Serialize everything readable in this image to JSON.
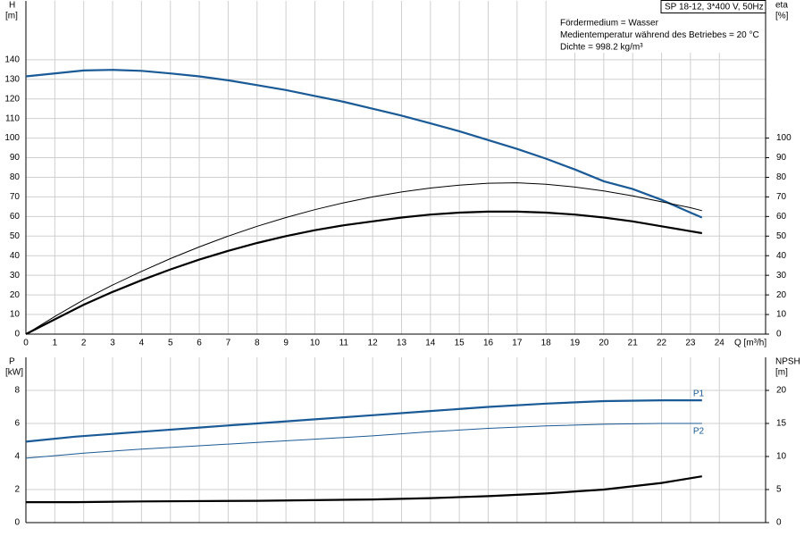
{
  "chart_data": [
    {
      "type": "line",
      "title": "SP 18-12, 3*400 V, 50Hz",
      "annotations": [
        "Fördermedium = Wasser",
        "Medientemperatur während des Betriebes = 20 °C",
        "Dichte = 998.2 kg/m³"
      ],
      "xlabel": "Q [m³/h]",
      "ylabel": "H",
      "yunit": "[m]",
      "y2label": "eta",
      "y2unit": "[%]",
      "xlim": [
        0,
        25.6
      ],
      "ylim": [
        0,
        170
      ],
      "y2lim": [
        0,
        170
      ],
      "xticks": [
        0,
        1,
        2,
        3,
        4,
        5,
        6,
        7,
        8,
        9,
        10,
        11,
        12,
        13,
        14,
        15,
        16,
        17,
        18,
        19,
        20,
        21,
        22,
        23,
        24
      ],
      "yticks": [
        0,
        10,
        20,
        30,
        40,
        50,
        60,
        70,
        80,
        90,
        100,
        110,
        120,
        130,
        140
      ],
      "y2ticks": [
        0,
        10,
        20,
        30,
        40,
        50,
        60,
        70,
        80,
        90,
        100
      ],
      "show_xtick_labels": true,
      "grid": true,
      "series": [
        {
          "color": "#1a5a96",
          "line": "thick",
          "axis": "y",
          "x": [
            0,
            2,
            3,
            4,
            5,
            6,
            7,
            8,
            9,
            10,
            11,
            12,
            13,
            14,
            15,
            16,
            17,
            18,
            19,
            20,
            21,
            22,
            23,
            23.4
          ],
          "values": [
            131.5,
            134.5,
            134.8,
            134.3,
            133,
            131.5,
            129.5,
            127,
            124.5,
            121.5,
            118.5,
            115,
            111.5,
            107.5,
            103.5,
            99,
            94.5,
            89.5,
            84,
            78,
            74,
            68.5,
            62,
            59.5
          ]
        },
        {
          "color": "#000000",
          "line": "thin",
          "axis": "y2",
          "x": [
            0,
            1,
            2,
            3,
            4,
            5,
            6,
            7,
            8,
            9,
            10,
            11,
            12,
            13,
            14,
            15,
            16,
            17,
            18,
            19,
            20,
            21,
            22,
            23,
            23.4
          ],
          "values": [
            0,
            9,
            17.5,
            25,
            32,
            38.5,
            44.5,
            50,
            55,
            59.5,
            63.5,
            67,
            70,
            72.5,
            74.5,
            76,
            77,
            77.2,
            76.5,
            75,
            73,
            70.5,
            67.5,
            64.5,
            63
          ]
        },
        {
          "color": "#000000",
          "line": "thick",
          "axis": "y2",
          "x": [
            0,
            1,
            2,
            3,
            4,
            5,
            6,
            7,
            8,
            9,
            10,
            11,
            12,
            13,
            14,
            15,
            16,
            17,
            18,
            19,
            20,
            21,
            22,
            23,
            23.4
          ],
          "values": [
            0,
            7.5,
            15,
            21.5,
            27.5,
            33,
            38,
            42.5,
            46.5,
            50,
            53,
            55.5,
            57.5,
            59.5,
            61,
            62,
            62.5,
            62.5,
            62,
            61,
            59.5,
            57.5,
            55,
            52.5,
            51.5
          ]
        }
      ]
    },
    {
      "type": "line",
      "ylabel": "P",
      "yunit": "[kW]",
      "y2label": "NPSH",
      "y2unit": "[m]",
      "xlim": [
        0,
        25.6
      ],
      "ylim": [
        0,
        10
      ],
      "y2lim": [
        0,
        25
      ],
      "xticks": [
        0,
        1,
        2,
        3,
        4,
        5,
        6,
        7,
        8,
        9,
        10,
        11,
        12,
        13,
        14,
        15,
        16,
        17,
        18,
        19,
        20,
        21,
        22,
        23,
        24
      ],
      "yticks": [
        0,
        2,
        4,
        6,
        8
      ],
      "y2ticks": [
        0,
        5,
        10,
        15,
        20
      ],
      "show_xtick_labels": false,
      "grid": true,
      "series": [
        {
          "name": "P1",
          "color": "#1a5a96",
          "line": "thick",
          "axis": "y",
          "x": [
            0,
            1.7,
            4,
            6,
            8,
            10,
            12,
            14,
            16,
            18,
            20,
            22,
            23.4
          ],
          "values": [
            4.9,
            5.2,
            5.5,
            5.75,
            6.0,
            6.25,
            6.5,
            6.75,
            7.0,
            7.2,
            7.35,
            7.4,
            7.4
          ]
        },
        {
          "name": "P2",
          "color": "#1a5a96",
          "line": "thin",
          "axis": "y",
          "x": [
            0,
            2,
            4,
            6,
            8,
            10,
            12,
            14,
            16,
            18,
            20,
            22,
            23.4
          ],
          "values": [
            3.9,
            4.2,
            4.45,
            4.65,
            4.85,
            5.05,
            5.25,
            5.5,
            5.7,
            5.85,
            5.95,
            6.0,
            6.0
          ]
        },
        {
          "color": "#000000",
          "line": "thick",
          "axis": "y2",
          "x": [
            0,
            1.7,
            4,
            8,
            12,
            14,
            16,
            18,
            20,
            22,
            23.4
          ],
          "values": [
            3.1,
            3.1,
            3.2,
            3.3,
            3.5,
            3.7,
            4.0,
            4.4,
            5.0,
            6.0,
            7.0
          ]
        }
      ]
    }
  ]
}
